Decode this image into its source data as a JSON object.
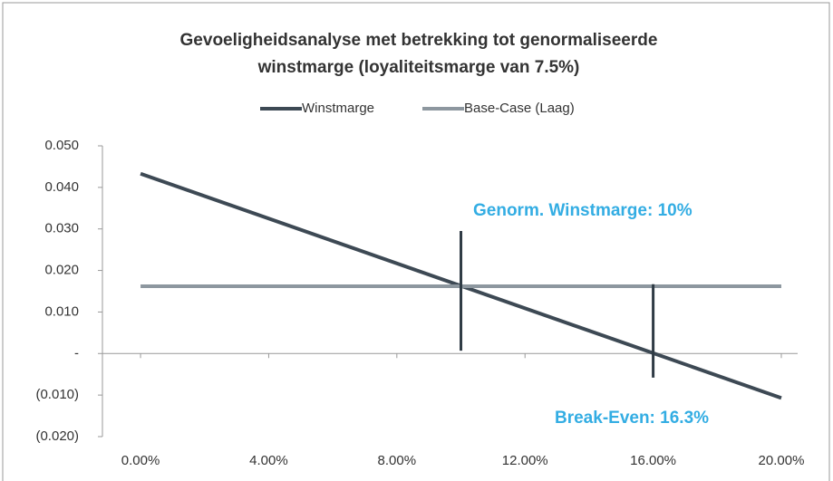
{
  "chart_data": {
    "type": "line",
    "title": [
      "Gevoeligheidsanalyse met betrekking tot genormaliseerde",
      "winstmarge (loyaliteitsmarge van 7.5%)"
    ],
    "series": [
      {
        "name": "Winstmarge",
        "color": "#3d4954",
        "x": [
          0,
          20
        ],
        "values": [
          0.0433,
          -0.0107
        ]
      },
      {
        "name": "Base-Case (Laag)",
        "color": "#8d979f",
        "x": [
          0,
          20
        ],
        "values": [
          0.0162,
          0.0162
        ]
      }
    ],
    "annotations": [
      {
        "text": "Genorm. Winstmarge: 10%",
        "color": "#33ade3",
        "x": 10,
        "y": [
          0.0295,
          0.0007
        ]
      },
      {
        "text": "Break-Even: 16.3%",
        "color": "#33ade3",
        "x": 16,
        "y": [
          0.0167,
          -0.0058
        ]
      }
    ],
    "xlim": [
      -1.19,
      20.51
    ],
    "xticks": [
      {
        "value": 0,
        "label": "0.00%"
      },
      {
        "value": 4,
        "label": "4.00%"
      },
      {
        "value": 8,
        "label": "8.00%"
      },
      {
        "value": 12,
        "label": "12.00%"
      },
      {
        "value": 16,
        "label": "16.00%"
      },
      {
        "value": 20,
        "label": "20.00%"
      }
    ],
    "ylim": [
      -0.02,
      0.05
    ],
    "yticks": [
      {
        "value": 0.05,
        "label": "0.050"
      },
      {
        "value": 0.04,
        "label": "0.040"
      },
      {
        "value": 0.03,
        "label": "0.030"
      },
      {
        "value": 0.02,
        "label": "0.020"
      },
      {
        "value": 0.01,
        "label": "0.010"
      },
      {
        "value": 0,
        "label": "-"
      },
      {
        "value": -0.01,
        "label": "(0.010)"
      },
      {
        "value": -0.02,
        "label": "(0.020)"
      }
    ],
    "grid": false,
    "legend": "top"
  }
}
